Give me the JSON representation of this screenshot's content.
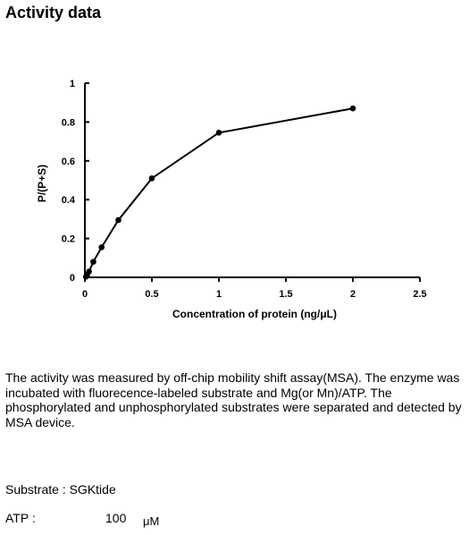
{
  "page": {
    "heading": "Activity data",
    "description": "The activity was measured by off-chip mobility shift assay(MSA). The enzyme was incubated with fluorecence-labeled  substrate and Mg(or Mn)/ATP. The phosphorylated and unphosphorylated substrates were separated and detected by MSA device.",
    "substrate_label": "Substrate : SGKtide",
    "atp_label": "ATP :",
    "atp_value": "100",
    "atp_unit": "μM"
  },
  "chart_data": {
    "type": "line",
    "title": "",
    "xlabel": "Concentration of protein (ng/μL)",
    "ylabel": "P/(P+S)",
    "xlim": [
      0,
      2.5
    ],
    "ylim": [
      0,
      1
    ],
    "xticks": [
      0,
      0.5,
      1,
      1.5,
      2,
      2.5
    ],
    "xtick_labels": [
      "0",
      "0.5",
      "1",
      "1.5",
      "2",
      "2.5"
    ],
    "yticks": [
      0,
      0.2,
      0.4,
      0.6,
      0.8,
      1
    ],
    "ytick_labels": [
      "0",
      "0.2",
      "0.4",
      "0.6",
      "0.8",
      "1"
    ],
    "grid": false,
    "series": [
      {
        "x": [
          0.008,
          0.016,
          0.031,
          0.063,
          0.125,
          0.25,
          0.5,
          1,
          2
        ],
        "y": [
          0.003,
          0.012,
          0.03,
          0.08,
          0.155,
          0.295,
          0.51,
          0.745,
          0.87
        ],
        "color": "#000000",
        "marker": "circle"
      }
    ]
  }
}
